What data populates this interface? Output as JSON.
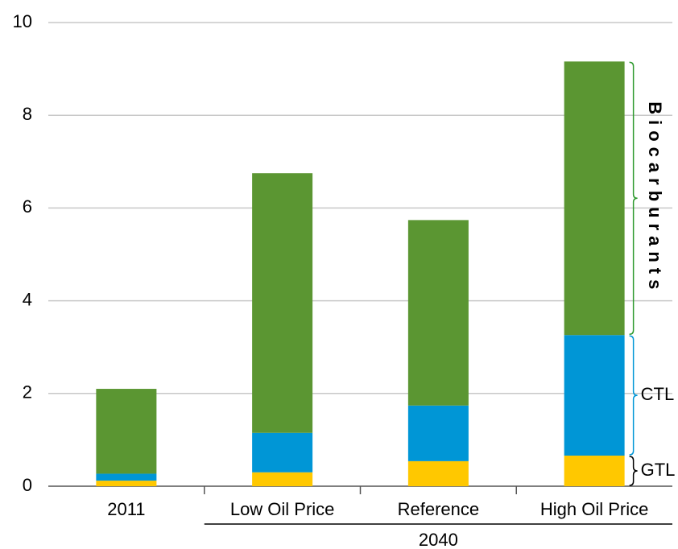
{
  "chart_data": {
    "type": "stacked_bar",
    "categories": [
      "2011",
      "Low Oil Price",
      "Reference",
      "High Oil Price"
    ],
    "group_label": "2040",
    "series": [
      {
        "name": "GTL",
        "color": "#ffc800",
        "label_color": "#000000",
        "values": [
          0.12,
          0.3,
          0.54,
          0.66
        ]
      },
      {
        "name": "CTL",
        "color": "#0096d6",
        "label_color": "#0096d6",
        "values": [
          0.15,
          0.85,
          1.2,
          2.6
        ]
      },
      {
        "name": "Biocarburants",
        "color": "#5b9632",
        "label_color": "#2e9a2e",
        "values": [
          1.83,
          5.6,
          4.0,
          5.9
        ]
      }
    ],
    "ylim": [
      0,
      10
    ],
    "yticks": [
      0,
      2,
      4,
      6,
      8,
      10
    ],
    "grid": true
  }
}
